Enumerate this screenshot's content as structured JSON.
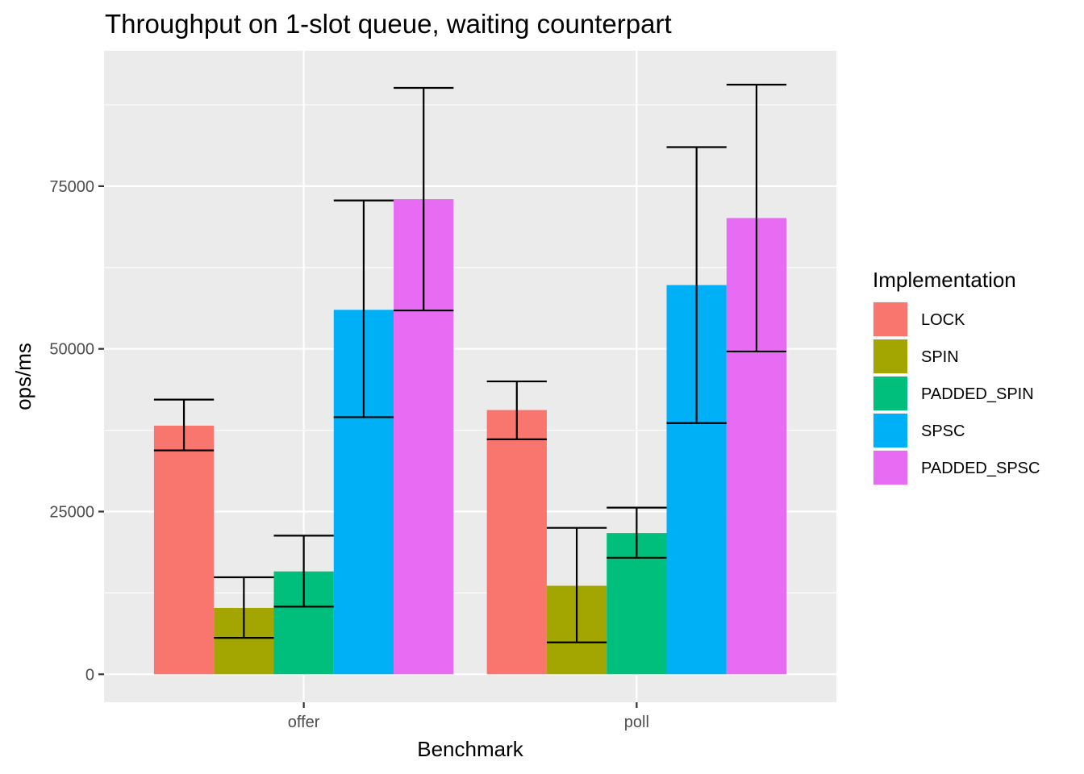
{
  "chart_data": {
    "type": "bar",
    "title": "Throughput on 1-slot queue, waiting counterpart",
    "xlabel": "Benchmark",
    "ylabel": "ops/ms",
    "categories": [
      "offer",
      "poll"
    ],
    "yticks": [
      0,
      25000,
      50000,
      75000
    ],
    "ytick_labels": [
      "0",
      "25000",
      "50000",
      "75000"
    ],
    "ylim": [
      -4300,
      95800
    ],
    "grid": true,
    "legend": {
      "title": "Implementation",
      "position": "right"
    },
    "series": [
      {
        "name": "LOCK",
        "color": "#F8766D",
        "values": [
          38200,
          40600
        ],
        "err_low": [
          34400,
          36100
        ],
        "err_high": [
          42200,
          45000
        ]
      },
      {
        "name": "SPIN",
        "color": "#A3A500",
        "values": [
          10200,
          13600
        ],
        "err_low": [
          5600,
          4900
        ],
        "err_high": [
          14900,
          22500
        ]
      },
      {
        "name": "PADDED_SPIN",
        "color": "#00BF7D",
        "values": [
          15800,
          21700
        ],
        "err_low": [
          10400,
          17900
        ],
        "err_high": [
          21300,
          25600
        ]
      },
      {
        "name": "SPSC",
        "color": "#00B0F6",
        "values": [
          56000,
          59800
        ],
        "err_low": [
          39500,
          38600
        ],
        "err_high": [
          72800,
          81000
        ]
      },
      {
        "name": "PADDED_SPSC",
        "color": "#E76BF3",
        "values": [
          73000,
          70100
        ],
        "err_low": [
          55900,
          49600
        ],
        "err_high": [
          90100,
          90600
        ]
      }
    ]
  }
}
